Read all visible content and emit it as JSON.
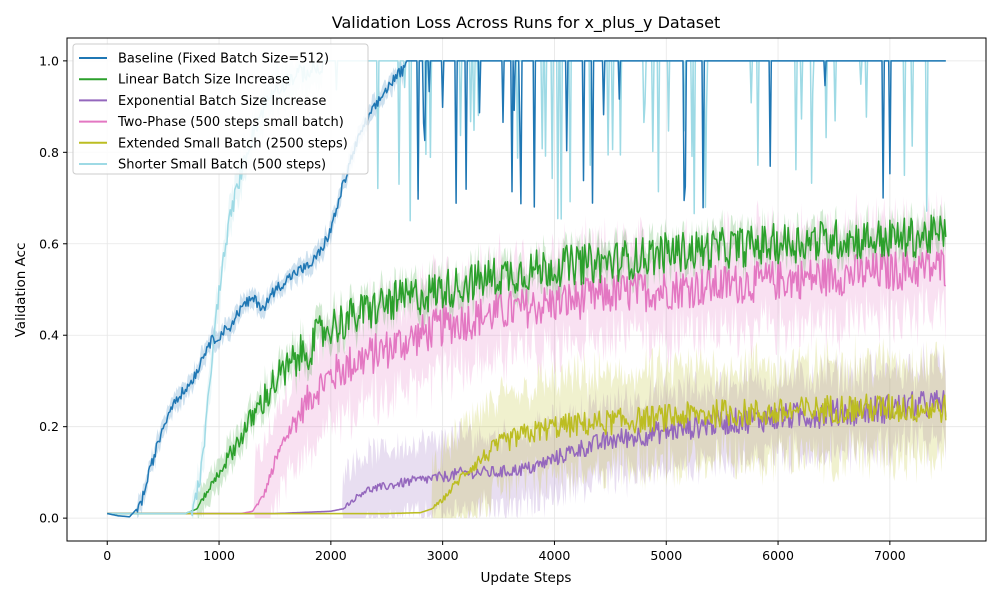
{
  "chart_data": {
    "type": "line",
    "title": "Validation Loss Across Runs for x_plus_y Dataset",
    "xlabel": "Update Steps",
    "ylabel": "Validation Acc",
    "xlim": [
      -360,
      7860
    ],
    "ylim": [
      -0.05,
      1.05
    ],
    "xticks": [
      0,
      1000,
      2000,
      3000,
      4000,
      5000,
      6000,
      7000
    ],
    "yticks": [
      0.0,
      0.2,
      0.4,
      0.6,
      0.8,
      1.0
    ],
    "grid": true,
    "legend_position": "upper-left",
    "colors": {
      "baseline": "#1f77b4",
      "linear": "#2ca02c",
      "exponential": "#9467bd",
      "two_phase": "#e377c2",
      "extended": "#bcbd22",
      "shorter": "#9edae5"
    },
    "series": [
      {
        "key": "baseline",
        "name": "Baseline (Fixed Batch Size=512)",
        "color": "#1f77b4",
        "points": [
          [
            0,
            0.01
          ],
          [
            100,
            0.005
          ],
          [
            200,
            0.003
          ],
          [
            300,
            0.03
          ],
          [
            400,
            0.12
          ],
          [
            500,
            0.2
          ],
          [
            600,
            0.26
          ],
          [
            700,
            0.28
          ],
          [
            800,
            0.32
          ],
          [
            900,
            0.38
          ],
          [
            1000,
            0.4
          ],
          [
            1100,
            0.42
          ],
          [
            1200,
            0.46
          ],
          [
            1300,
            0.48
          ],
          [
            1400,
            0.46
          ],
          [
            1500,
            0.5
          ],
          [
            1600,
            0.52
          ],
          [
            1700,
            0.54
          ],
          [
            1800,
            0.55
          ],
          [
            1900,
            0.58
          ],
          [
            2000,
            0.63
          ],
          [
            2100,
            0.72
          ],
          [
            2200,
            0.8
          ],
          [
            2300,
            0.86
          ],
          [
            2400,
            0.9
          ],
          [
            2500,
            0.94
          ],
          [
            2600,
            0.97
          ],
          [
            2700,
            0.99
          ],
          [
            2800,
            1.0
          ],
          [
            3000,
            1.0
          ],
          [
            3500,
            1.0
          ],
          [
            4000,
            1.0
          ],
          [
            5000,
            1.0
          ],
          [
            6000,
            1.0
          ],
          [
            7000,
            1.0
          ],
          [
            7500,
            1.0
          ]
        ],
        "band": 0.02
      },
      {
        "key": "linear",
        "name": "Linear Batch Size Increase",
        "color": "#2ca02c",
        "points": [
          [
            0,
            0.01
          ],
          [
            500,
            0.01
          ],
          [
            700,
            0.01
          ],
          [
            800,
            0.02
          ],
          [
            900,
            0.06
          ],
          [
            1000,
            0.1
          ],
          [
            1100,
            0.14
          ],
          [
            1200,
            0.18
          ],
          [
            1300,
            0.22
          ],
          [
            1400,
            0.26
          ],
          [
            1500,
            0.3
          ],
          [
            1600,
            0.32
          ],
          [
            1700,
            0.35
          ],
          [
            1800,
            0.37
          ],
          [
            1900,
            0.4
          ],
          [
            2000,
            0.42
          ],
          [
            2200,
            0.44
          ],
          [
            2500,
            0.47
          ],
          [
            3000,
            0.5
          ],
          [
            3500,
            0.53
          ],
          [
            4000,
            0.55
          ],
          [
            4500,
            0.56
          ],
          [
            5000,
            0.58
          ],
          [
            5500,
            0.59
          ],
          [
            6000,
            0.6
          ],
          [
            6500,
            0.61
          ],
          [
            7000,
            0.61
          ],
          [
            7500,
            0.62
          ]
        ],
        "band": 0.03
      },
      {
        "key": "exponential",
        "name": "Exponential Batch Size Increase",
        "color": "#9467bd",
        "points": [
          [
            0,
            0.01
          ],
          [
            1000,
            0.01
          ],
          [
            1500,
            0.01
          ],
          [
            2000,
            0.015
          ],
          [
            2100,
            0.02
          ],
          [
            2200,
            0.04
          ],
          [
            2300,
            0.06
          ],
          [
            2500,
            0.07
          ],
          [
            2700,
            0.08
          ],
          [
            3000,
            0.09
          ],
          [
            3200,
            0.1
          ],
          [
            3500,
            0.1
          ],
          [
            3800,
            0.11
          ],
          [
            4000,
            0.13
          ],
          [
            4200,
            0.15
          ],
          [
            4500,
            0.17
          ],
          [
            5000,
            0.19
          ],
          [
            5500,
            0.21
          ],
          [
            6000,
            0.22
          ],
          [
            6500,
            0.23
          ],
          [
            7000,
            0.24
          ],
          [
            7500,
            0.25
          ]
        ],
        "band": 0.08
      },
      {
        "key": "two_phase",
        "name": "Two-Phase (500 steps small batch)",
        "color": "#e377c2",
        "points": [
          [
            0,
            0.01
          ],
          [
            1000,
            0.01
          ],
          [
            1200,
            0.01
          ],
          [
            1300,
            0.015
          ],
          [
            1400,
            0.05
          ],
          [
            1500,
            0.12
          ],
          [
            1600,
            0.18
          ],
          [
            1700,
            0.22
          ],
          [
            1800,
            0.26
          ],
          [
            1900,
            0.29
          ],
          [
            2000,
            0.31
          ],
          [
            2200,
            0.34
          ],
          [
            2500,
            0.37
          ],
          [
            3000,
            0.42
          ],
          [
            3500,
            0.45
          ],
          [
            4000,
            0.47
          ],
          [
            4500,
            0.49
          ],
          [
            5000,
            0.5
          ],
          [
            5500,
            0.51
          ],
          [
            6000,
            0.52
          ],
          [
            6500,
            0.53
          ],
          [
            7000,
            0.54
          ],
          [
            7500,
            0.55
          ]
        ],
        "band": 0.1
      },
      {
        "key": "extended",
        "name": "Extended Small Batch (2500 steps)",
        "color": "#bcbd22",
        "points": [
          [
            0,
            0.01
          ],
          [
            1000,
            0.01
          ],
          [
            2000,
            0.01
          ],
          [
            2500,
            0.01
          ],
          [
            2800,
            0.012
          ],
          [
            2900,
            0.02
          ],
          [
            3000,
            0.04
          ],
          [
            3100,
            0.07
          ],
          [
            3200,
            0.1
          ],
          [
            3300,
            0.12
          ],
          [
            3500,
            0.16
          ],
          [
            3700,
            0.18
          ],
          [
            4000,
            0.2
          ],
          [
            4500,
            0.21
          ],
          [
            5000,
            0.22
          ],
          [
            5500,
            0.23
          ],
          [
            6000,
            0.23
          ],
          [
            6500,
            0.24
          ],
          [
            7000,
            0.24
          ],
          [
            7500,
            0.24
          ]
        ],
        "band": 0.1
      },
      {
        "key": "shorter",
        "name": "Shorter Small Batch (500 steps)",
        "color": "#9edae5",
        "points": [
          [
            0,
            0.01
          ],
          [
            500,
            0.01
          ],
          [
            700,
            0.01
          ],
          [
            750,
            0.015
          ],
          [
            800,
            0.05
          ],
          [
            850,
            0.12
          ],
          [
            900,
            0.25
          ],
          [
            950,
            0.38
          ],
          [
            1000,
            0.5
          ],
          [
            1050,
            0.58
          ],
          [
            1100,
            0.66
          ],
          [
            1200,
            0.76
          ],
          [
            1300,
            0.84
          ],
          [
            1400,
            0.9
          ],
          [
            1500,
            0.94
          ],
          [
            1700,
            0.97
          ],
          [
            2000,
            0.99
          ],
          [
            2300,
            1.0
          ],
          [
            3000,
            1.0
          ],
          [
            4000,
            1.0
          ],
          [
            5000,
            1.0
          ],
          [
            6000,
            1.0
          ],
          [
            7000,
            1.0
          ],
          [
            7500,
            1.0
          ]
        ],
        "band": 0.04
      }
    ]
  }
}
